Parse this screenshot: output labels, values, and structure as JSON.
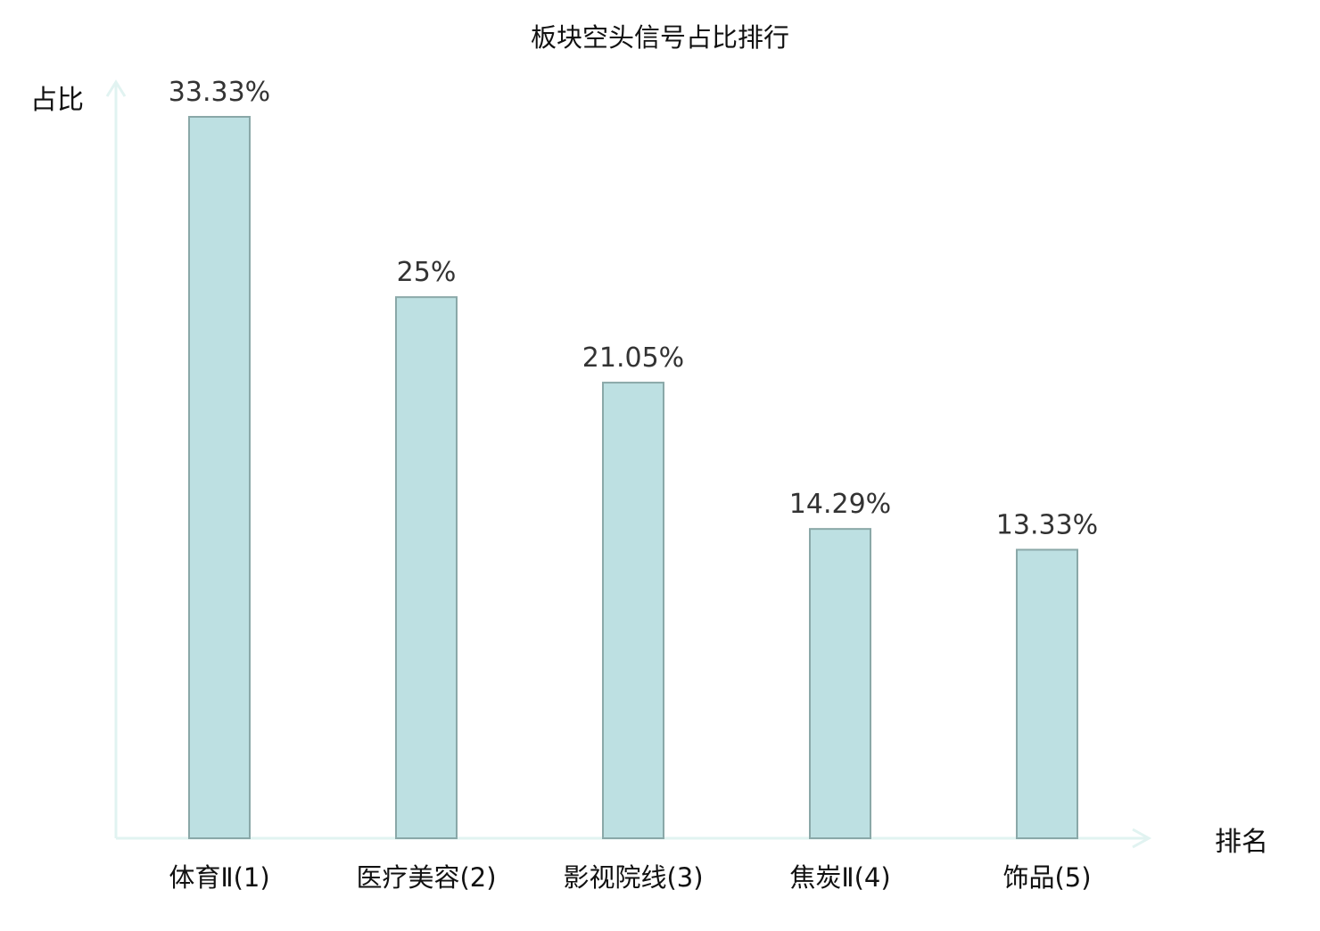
{
  "chart_data": {
    "type": "bar",
    "title": "板块空头信号占比排行",
    "ylabel": "占比",
    "xlabel": "排名",
    "categories": [
      "体育Ⅱ(1)",
      "医疗美容(2)",
      "影视院线(3)",
      "焦炭Ⅱ(4)",
      "饰品(5)"
    ],
    "values": [
      33.33,
      25,
      21.05,
      14.29,
      13.33
    ],
    "value_labels": [
      "33.33%",
      "25%",
      "21.05%",
      "14.29%",
      "13.33%"
    ],
    "ylim": [
      0,
      33.33
    ],
    "grid": false,
    "legend": "none",
    "highlight_index": 0,
    "colors": {
      "bar_fill": "#bde0e2",
      "bar_stroke": "#8aa8a8",
      "axis": "#e1f3f1",
      "highlight_text": "#e01010",
      "text": "#111111",
      "value_text": "#333333"
    }
  }
}
